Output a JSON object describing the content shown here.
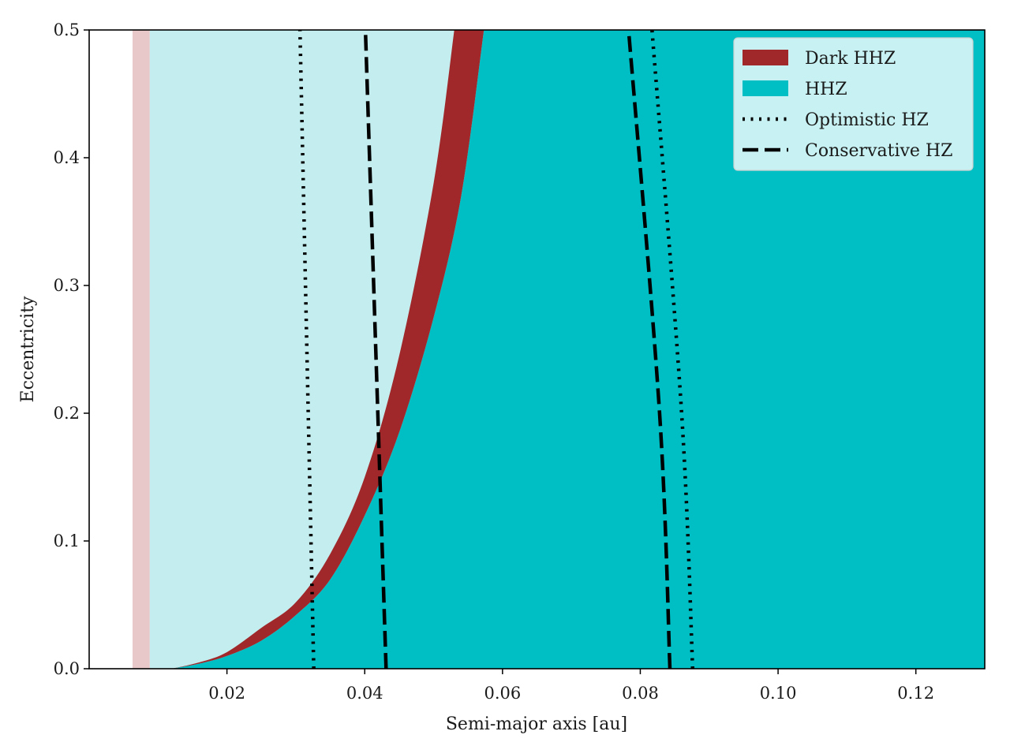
{
  "chart_data": {
    "type": "area",
    "title": "",
    "xlabel": "Semi-major axis [au]",
    "ylabel": "Eccentricity",
    "xlim": [
      0.0,
      0.13
    ],
    "ylim": [
      0.0,
      0.5
    ],
    "xticks": [
      0.02,
      0.04,
      0.06,
      0.08,
      0.1,
      0.12
    ],
    "xtick_labels": [
      "0.02",
      "0.04",
      "0.06",
      "0.08",
      "0.10",
      "0.12"
    ],
    "yticks": [
      0.0,
      0.1,
      0.2,
      0.3,
      0.4,
      0.5
    ],
    "ytick_labels": [
      "0.0",
      "0.1",
      "0.2",
      "0.3",
      "0.4",
      "0.5"
    ],
    "grid": false,
    "legend_position": "top-right",
    "colors": {
      "dark_hhz": "#a0282a",
      "hhz": "#00bfc4",
      "hhz_light": "#c3edee",
      "inner_limit_pink": "#e8c8c9",
      "lines": "#000000"
    },
    "legend": [
      {
        "label": "Dark HHZ",
        "kind": "patch",
        "color": "#a0282a"
      },
      {
        "label": "HHZ",
        "kind": "patch",
        "color": "#00bfc4"
      },
      {
        "label": "Optimistic HZ",
        "kind": "dotted"
      },
      {
        "label": "Conservative HZ",
        "kind": "dashed"
      }
    ],
    "regions": {
      "inner_pink_band": {
        "x": [
          0.0063,
          0.0088
        ]
      },
      "light_hhz_from_x": 0.0088,
      "dark_hhz_left_edge": [
        [
          0.012,
          0.0
        ],
        [
          0.016,
          0.005
        ],
        [
          0.02,
          0.013
        ],
        [
          0.025,
          0.032
        ],
        [
          0.03,
          0.052
        ],
        [
          0.035,
          0.09
        ],
        [
          0.04,
          0.15
        ],
        [
          0.045,
          0.245
        ],
        [
          0.05,
          0.38
        ],
        [
          0.053,
          0.5
        ]
      ],
      "dark_hhz_right_edge": [
        [
          0.012,
          0.0
        ],
        [
          0.016,
          0.004
        ],
        [
          0.02,
          0.01
        ],
        [
          0.025,
          0.022
        ],
        [
          0.03,
          0.042
        ],
        [
          0.035,
          0.07
        ],
        [
          0.04,
          0.12
        ],
        [
          0.045,
          0.185
        ],
        [
          0.05,
          0.275
        ],
        [
          0.054,
          0.37
        ],
        [
          0.0573,
          0.5
        ]
      ]
    },
    "series": [
      {
        "name": "Optimistic HZ",
        "style": "dotted",
        "points": [
          [
            0.0326,
            0.0
          ],
          [
            0.0318,
            0.2
          ],
          [
            0.0306,
            0.5
          ]
        ]
      },
      {
        "name": "Optimistic HZ",
        "style": "dotted",
        "points": [
          [
            0.0876,
            0.0
          ],
          [
            0.086,
            0.2
          ],
          [
            0.0817,
            0.5
          ]
        ]
      },
      {
        "name": "Conservative HZ",
        "style": "dashed",
        "points": [
          [
            0.0431,
            0.0
          ],
          [
            0.0419,
            0.2
          ],
          [
            0.0401,
            0.5
          ]
        ]
      },
      {
        "name": "Conservative HZ",
        "style": "dashed",
        "points": [
          [
            0.0843,
            0.0
          ],
          [
            0.0828,
            0.2
          ],
          [
            0.0783,
            0.5
          ]
        ]
      }
    ]
  }
}
